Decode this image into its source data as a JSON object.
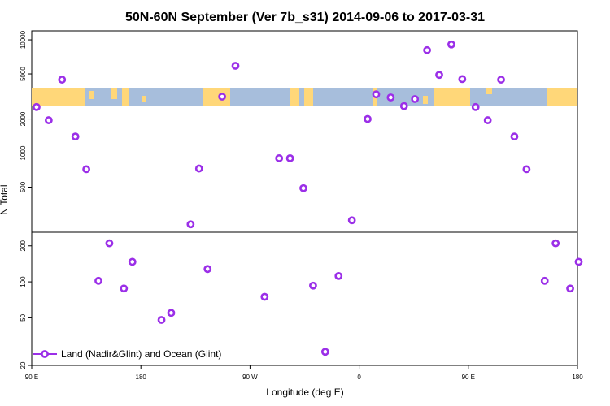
{
  "chart_data": {
    "type": "scatter",
    "title": "50N-60N September (Ver 7b_s31)   2014-09-06 to 2017-03-31",
    "xlabel": "Longitude (deg E)",
    "ylabel": "N Total",
    "x_ticks": [
      "90 E",
      "180",
      "90 W",
      "0",
      "90 E",
      "180"
    ],
    "x_tick_values": [
      90,
      180,
      270,
      360,
      450,
      540
    ],
    "xlim": [
      90,
      540
    ],
    "upper_panel": {
      "y_scale": "log",
      "ylim": [
        200,
        12000
      ],
      "y_ticks": [
        "500",
        "1000",
        "2000",
        "5000",
        "10000"
      ],
      "y_tick_values": [
        500,
        1000,
        2000,
        5000,
        10000
      ]
    },
    "lower_panel": {
      "y_scale": "log",
      "ylim": [
        20,
        260
      ],
      "y_ticks": [
        "20",
        "50",
        "100",
        "200"
      ],
      "y_tick_values": [
        20,
        50,
        100,
        200
      ]
    },
    "map_strip": {
      "ocean_color": "#a7bedc",
      "land_color": "#ffd779"
    },
    "series": [
      {
        "name": "Land (Nadir&Glint) and Ocean (Glint)",
        "color": "#9b2fe8",
        "upper_points": [
          {
            "x": 94,
            "y": 2550
          },
          {
            "x": 104,
            "y": 1950
          },
          {
            "x": 115,
            "y": 4450
          },
          {
            "x": 126,
            "y": 1400
          },
          {
            "x": 135,
            "y": 720
          },
          {
            "x": 221,
            "y": 235
          },
          {
            "x": 228,
            "y": 730
          },
          {
            "x": 247,
            "y": 3150
          },
          {
            "x": 258,
            "y": 5900
          },
          {
            "x": 294,
            "y": 900
          },
          {
            "x": 303,
            "y": 900
          },
          {
            "x": 314,
            "y": 490
          },
          {
            "x": 354,
            "y": 255
          },
          {
            "x": 367,
            "y": 2000
          },
          {
            "x": 374,
            "y": 3300
          },
          {
            "x": 386,
            "y": 3100
          },
          {
            "x": 397,
            "y": 2600
          },
          {
            "x": 406,
            "y": 3000
          },
          {
            "x": 416,
            "y": 8100
          },
          {
            "x": 426,
            "y": 4900
          },
          {
            "x": 436,
            "y": 9100
          },
          {
            "x": 445,
            "y": 4500
          },
          {
            "x": 456,
            "y": 2550
          },
          {
            "x": 466,
            "y": 1950
          },
          {
            "x": 477,
            "y": 4450
          },
          {
            "x": 488,
            "y": 1400
          },
          {
            "x": 498,
            "y": 720
          }
        ],
        "lower_points": [
          {
            "x": 145,
            "y": 102
          },
          {
            "x": 154,
            "y": 210
          },
          {
            "x": 166,
            "y": 88
          },
          {
            "x": 173,
            "y": 147
          },
          {
            "x": 197,
            "y": 48
          },
          {
            "x": 205,
            "y": 55
          },
          {
            "x": 235,
            "y": 128
          },
          {
            "x": 282,
            "y": 75
          },
          {
            "x": 322,
            "y": 93
          },
          {
            "x": 332,
            "y": 26
          },
          {
            "x": 343,
            "y": 112
          },
          {
            "x": 513,
            "y": 102
          },
          {
            "x": 522,
            "y": 210
          },
          {
            "x": 534,
            "y": 88
          },
          {
            "x": 541,
            "y": 147
          }
        ]
      }
    ],
    "legend": {
      "position": "bottom-left"
    }
  }
}
